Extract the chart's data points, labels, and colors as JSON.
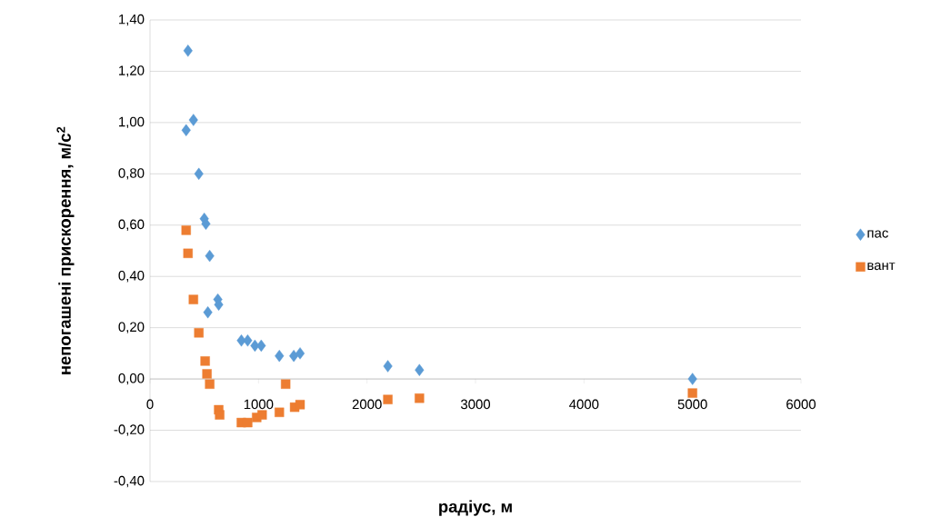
{
  "chart_data": {
    "type": "scatter",
    "xlabel": "радіус, м",
    "ylabel": "непогашені прискорення, м/с$^{2}$",
    "xlim": [
      0,
      6000
    ],
    "xticks": [
      0,
      1000,
      2000,
      3000,
      4000,
      5000,
      6000
    ],
    "ylim": [
      -0.4,
      1.4
    ],
    "yticks": [
      {
        "value": -0.4,
        "label": "-0,40"
      },
      {
        "value": -0.2,
        "label": "-0,20"
      },
      {
        "value": 0,
        "label": "0,00"
      },
      {
        "value": 0.2,
        "label": "0,20"
      },
      {
        "value": 0.4,
        "label": "0,40"
      },
      {
        "value": 0.6,
        "label": "0,60"
      },
      {
        "value": 0.8,
        "label": "0,80"
      },
      {
        "value": 1.0,
        "label": "1,00"
      },
      {
        "value": 1.2,
        "label": "1,20"
      },
      {
        "value": 1.4,
        "label": "1,40"
      }
    ],
    "grid": "y",
    "legend": "right",
    "series": [
      {
        "name": "пас",
        "color": "#5b9bd5",
        "marker": "diamond",
        "x": [
          350,
          333,
          400,
          450,
          500,
          515,
          550,
          625,
          633,
          533,
          842,
          900,
          967,
          1025,
          1192,
          1325,
          1383,
          2192,
          2483,
          5000
        ],
        "values": [
          1.28,
          0.97,
          1.01,
          0.8,
          0.625,
          0.605,
          0.48,
          0.31,
          0.29,
          0.26,
          0.15,
          0.15,
          0.13,
          0.13,
          0.09,
          0.09,
          0.1,
          0.05,
          0.035,
          0.0
        ]
      },
      {
        "name": "вант",
        "color": "#ed7d31",
        "marker": "square",
        "x": [
          333,
          350,
          400,
          450,
          508,
          525,
          550,
          633,
          642,
          842,
          900,
          983,
          1033,
          1192,
          1250,
          1333,
          1383,
          2192,
          2483,
          5000
        ],
        "values": [
          0.58,
          0.49,
          0.31,
          0.18,
          0.07,
          0.02,
          -0.02,
          -0.12,
          -0.14,
          -0.17,
          -0.17,
          -0.15,
          -0.14,
          -0.13,
          -0.02,
          -0.11,
          -0.1,
          -0.08,
          -0.075,
          -0.055
        ]
      }
    ]
  }
}
